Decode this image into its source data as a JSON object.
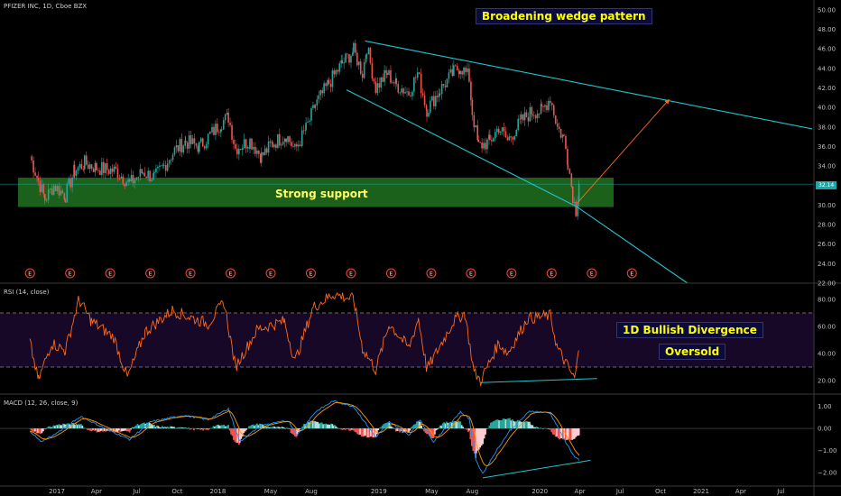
{
  "header": {
    "symbol_title": "PFIZER INC, 1D, Cboe BZX",
    "rsi_title": "RSI (14, close)",
    "macd_title": "MACD (12, 26, close, 9)"
  },
  "annotations": {
    "pattern_label": "Broadening wedge pattern",
    "support_label": "Strong support",
    "divergence_label": "1D Bullish Divergence",
    "oversold_label": "Oversold",
    "last_price": "32.14",
    "earnings_marker": "E"
  },
  "colors": {
    "price_up": "#26a69a",
    "price_down": "#ef5350",
    "wedge_lines": "#22c4cc",
    "support_zone": "#1e6b1e",
    "rsi_line": "#ff6a1a",
    "rsi_band": "#160826",
    "macd_line": "#2196f3",
    "signal_line": "#ff9800",
    "projection_arrow": "#ff6a1a"
  },
  "chart_data": [
    {
      "type": "line",
      "name": "price",
      "x_tick_labels": [
        "2017",
        "Apr",
        "Jul",
        "Oct",
        "2018",
        "May",
        "Aug",
        "2019",
        "May",
        "Aug",
        "2020",
        "Apr",
        "Jul",
        "Oct",
        "2021",
        "Apr",
        "Jul"
      ],
      "y_ticks": [
        50,
        48,
        46,
        44,
        42,
        40,
        38,
        36,
        34,
        32,
        30,
        28,
        26,
        24,
        22
      ],
      "ylim": [
        22,
        51
      ],
      "anchors": [
        [
          "2016-11-01",
          35.0
        ],
        [
          "2016-11-20",
          32.5
        ],
        [
          "2016-12-05",
          30.6
        ],
        [
          "2016-12-25",
          32.0
        ],
        [
          "2017-01-20",
          31.0
        ],
        [
          "2017-02-10",
          33.5
        ],
        [
          "2017-03-05",
          34.3
        ],
        [
          "2017-04-01",
          33.8
        ],
        [
          "2017-05-15",
          33.5
        ],
        [
          "2017-06-15",
          32.2
        ],
        [
          "2017-07-15",
          33.4
        ],
        [
          "2017-08-10",
          32.8
        ],
        [
          "2017-09-01",
          34.0
        ],
        [
          "2017-09-25",
          35.6
        ],
        [
          "2017-10-20",
          36.5
        ],
        [
          "2017-11-20",
          36.0
        ],
        [
          "2017-12-15",
          37.2
        ],
        [
          "2018-01-10",
          38.5
        ],
        [
          "2018-01-25",
          39.0
        ],
        [
          "2018-02-10",
          35.8
        ],
        [
          "2018-03-15",
          36.6
        ],
        [
          "2018-04-10",
          35.0
        ],
        [
          "2018-05-05",
          36.3
        ],
        [
          "2018-06-05",
          37.2
        ],
        [
          "2018-06-25",
          35.6
        ],
        [
          "2018-07-20",
          37.8
        ],
        [
          "2018-08-10",
          40.2
        ],
        [
          "2018-09-10",
          42.5
        ],
        [
          "2018-10-10",
          44.5
        ],
        [
          "2018-11-05",
          45.8
        ],
        [
          "2018-11-25",
          43.5
        ],
        [
          "2018-12-05",
          46.2
        ],
        [
          "2018-12-25",
          42.0
        ],
        [
          "2019-01-20",
          43.5
        ],
        [
          "2019-02-10",
          42.3
        ],
        [
          "2019-03-10",
          41.5
        ],
        [
          "2019-03-30",
          43.5
        ],
        [
          "2019-04-20",
          39.8
        ],
        [
          "2019-05-20",
          41.8
        ],
        [
          "2019-06-20",
          43.6
        ],
        [
          "2019-07-05",
          44.2
        ],
        [
          "2019-07-25",
          43.0
        ],
        [
          "2019-08-01",
          39.5
        ],
        [
          "2019-08-15",
          36.0
        ],
        [
          "2019-09-10",
          36.5
        ],
        [
          "2019-09-30",
          38.0
        ],
        [
          "2019-10-20",
          36.6
        ],
        [
          "2019-11-20",
          38.6
        ],
        [
          "2019-12-15",
          39.6
        ],
        [
          "2020-01-05",
          39.6
        ],
        [
          "2020-01-25",
          41.0
        ],
        [
          "2020-02-10",
          38.0
        ],
        [
          "2020-02-25",
          36.8
        ],
        [
          "2020-03-05",
          34.5
        ],
        [
          "2020-03-16",
          31.0
        ],
        [
          "2020-03-23",
          29.5
        ],
        [
          "2020-03-30",
          32.14
        ]
      ],
      "last_price": 32.14,
      "support_zone": [
        29.8,
        32.8
      ],
      "wedge_upper": [
        [
          "2018-12-01",
          46.8
        ],
        [
          "2021-09-10",
          37.8
        ]
      ],
      "wedge_lower": [
        [
          "2018-10-20",
          41.8
        ],
        [
          "2020-03-26",
          29.8
        ],
        [
          "2020-12-01",
          22.0
        ]
      ],
      "projection_arrow": [
        [
          "2020-03-26",
          30.2
        ],
        [
          "2020-10-20",
          40.8
        ]
      ],
      "earnings_dates": [
        "2016-11-01",
        "2017-01-31",
        "2017-05-02",
        "2017-08-01",
        "2017-10-31",
        "2018-01-30",
        "2018-05-01",
        "2018-07-31",
        "2018-10-30",
        "2019-01-29",
        "2019-04-30",
        "2019-07-29",
        "2019-10-29",
        "2020-01-28",
        "2020-04-28",
        "2020-07-28"
      ]
    },
    {
      "type": "line",
      "name": "RSI",
      "y_ticks": [
        80,
        60,
        40,
        20
      ],
      "ylim": [
        10,
        90
      ],
      "band": [
        30,
        70
      ],
      "anchors": [
        [
          "2016-11-01",
          48
        ],
        [
          "2016-11-20",
          20
        ],
        [
          "2016-12-20",
          48
        ],
        [
          "2017-01-20",
          42
        ],
        [
          "2017-02-20",
          80
        ],
        [
          "2017-03-20",
          64
        ],
        [
          "2017-05-10",
          52
        ],
        [
          "2017-06-10",
          22
        ],
        [
          "2017-07-20",
          56
        ],
        [
          "2017-09-20",
          72
        ],
        [
          "2017-10-20",
          68
        ],
        [
          "2017-12-10",
          62
        ],
        [
          "2018-01-15",
          78
        ],
        [
          "2018-02-10",
          30
        ],
        [
          "2018-04-01",
          58
        ],
        [
          "2018-06-01",
          64
        ],
        [
          "2018-06-25",
          34
        ],
        [
          "2018-08-05",
          74
        ],
        [
          "2018-09-20",
          84
        ],
        [
          "2018-11-05",
          80
        ],
        [
          "2018-11-25",
          44
        ],
        [
          "2018-12-25",
          28
        ],
        [
          "2019-01-25",
          62
        ],
        [
          "2019-03-10",
          44
        ],
        [
          "2019-04-01",
          66
        ],
        [
          "2019-04-20",
          28
        ],
        [
          "2019-06-20",
          64
        ],
        [
          "2019-07-15",
          70
        ],
        [
          "2019-08-05",
          26
        ],
        [
          "2019-08-20",
          20
        ],
        [
          "2019-09-30",
          48
        ],
        [
          "2019-10-20",
          40
        ],
        [
          "2019-12-05",
          66
        ],
        [
          "2020-01-25",
          68
        ],
        [
          "2020-02-10",
          44
        ],
        [
          "2020-03-05",
          30
        ],
        [
          "2020-03-20",
          21
        ],
        [
          "2020-03-30",
          42
        ]
      ],
      "divergence_line": [
        [
          "2019-08-20",
          18.5
        ],
        [
          "2020-05-10",
          21.5
        ]
      ]
    },
    {
      "type": "bar",
      "name": "MACD",
      "y_ticks": [
        1.0,
        0.0,
        -1.0,
        -2.0
      ],
      "ylim": [
        -2.5,
        1.4
      ],
      "macd_anchors": [
        [
          "2016-11-01",
          -0.1
        ],
        [
          "2016-11-25",
          -0.6
        ],
        [
          "2016-12-25",
          -0.3
        ],
        [
          "2017-02-25",
          0.55
        ],
        [
          "2017-04-10",
          0.1
        ],
        [
          "2017-06-15",
          -0.5
        ],
        [
          "2017-08-01",
          0.3
        ],
        [
          "2017-10-15",
          0.6
        ],
        [
          "2017-12-10",
          0.4
        ],
        [
          "2018-01-25",
          0.9
        ],
        [
          "2018-02-20",
          -0.6
        ],
        [
          "2018-04-10",
          0.15
        ],
        [
          "2018-06-10",
          0.35
        ],
        [
          "2018-06-30",
          -0.3
        ],
        [
          "2018-08-10",
          0.75
        ],
        [
          "2018-09-20",
          1.25
        ],
        [
          "2018-11-05",
          1.0
        ],
        [
          "2018-12-25",
          -0.4
        ],
        [
          "2019-01-25",
          0.3
        ],
        [
          "2019-03-10",
          -0.3
        ],
        [
          "2019-04-05",
          0.4
        ],
        [
          "2019-05-05",
          -0.6
        ],
        [
          "2019-07-05",
          0.75
        ],
        [
          "2019-07-25",
          0.45
        ],
        [
          "2019-08-10",
          -1.5
        ],
        [
          "2019-08-25",
          -2.05
        ],
        [
          "2019-09-25",
          -1.0
        ],
        [
          "2019-10-25",
          -0.1
        ],
        [
          "2019-12-10",
          0.8
        ],
        [
          "2020-01-25",
          0.7
        ],
        [
          "2020-02-20",
          -0.3
        ],
        [
          "2020-03-20",
          -1.3
        ],
        [
          "2020-03-30",
          -1.45
        ]
      ],
      "divergence_line": [
        [
          "2019-08-25",
          -2.25
        ],
        [
          "2020-04-25",
          -1.45
        ]
      ]
    }
  ]
}
